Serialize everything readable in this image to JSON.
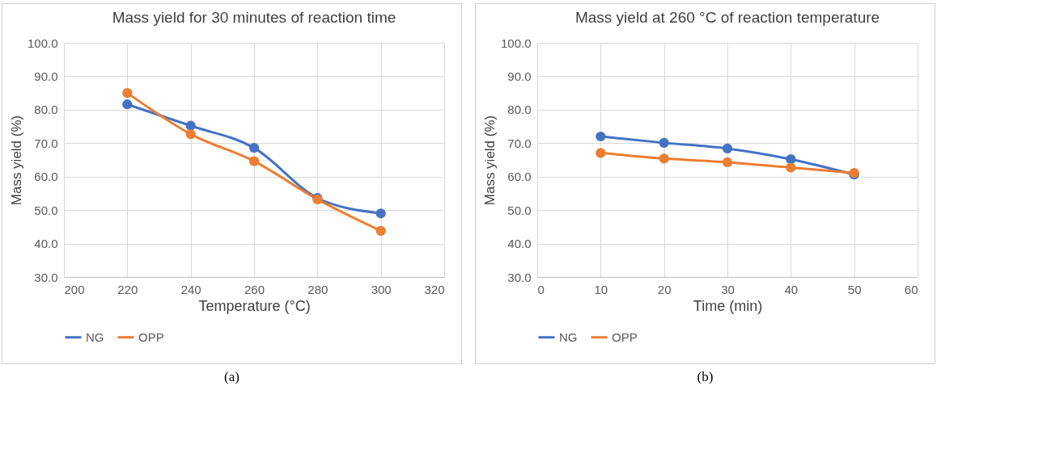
{
  "chart_data": [
    {
      "type": "line",
      "title": "Mass yield for 30 minutes of reaction time",
      "xlabel": "Temperature (°C)",
      "ylabel": "Mass yield (%)",
      "x": [
        220,
        240,
        260,
        280,
        300
      ],
      "series": [
        {
          "name": "NG",
          "color": "#4472c4",
          "values": [
            81.6,
            75.2,
            68.6,
            53.6,
            49.0
          ]
        },
        {
          "name": "OPP",
          "color": "#ed7d31",
          "values": [
            85.0,
            72.7,
            64.6,
            53.2,
            43.8
          ]
        }
      ],
      "xlim": [
        200,
        320
      ],
      "xticks": [
        200,
        220,
        240,
        260,
        280,
        300,
        320
      ],
      "ylim": [
        30,
        100
      ],
      "yticks": [
        {
          "value": 30,
          "label": "30.0"
        },
        {
          "value": 40,
          "label": "40.0"
        },
        {
          "value": 50,
          "label": "50.0"
        },
        {
          "value": 60,
          "label": "60.0"
        },
        {
          "value": 70,
          "label": "70.0"
        },
        {
          "value": 80,
          "label": "80.0"
        },
        {
          "value": 90,
          "label": "90.0"
        },
        {
          "value": 100,
          "label": "100.0"
        }
      ],
      "grid": true,
      "legend": "bottom",
      "marker": "circle",
      "annotations": [
        "(a)"
      ]
    },
    {
      "type": "line",
      "title": "Mass yield at 260 °C of reaction temperature",
      "xlabel": "Time (min)",
      "ylabel": "Mass yield (%)",
      "x": [
        10,
        20,
        30,
        40,
        50
      ],
      "series": [
        {
          "name": "NG",
          "color": "#4472c4",
          "values": [
            72.0,
            70.1,
            68.4,
            65.2,
            60.6
          ]
        },
        {
          "name": "OPP",
          "color": "#ed7d31",
          "values": [
            67.1,
            65.4,
            64.3,
            62.7,
            61.1
          ]
        }
      ],
      "xlim": [
        0,
        60
      ],
      "xticks": [
        0,
        10,
        20,
        30,
        40,
        50,
        60
      ],
      "ylim": [
        30,
        100
      ],
      "yticks": [
        {
          "value": 30,
          "label": "30.0"
        },
        {
          "value": 40,
          "label": "40.0"
        },
        {
          "value": 50,
          "label": "50.0"
        },
        {
          "value": 60,
          "label": "60.0"
        },
        {
          "value": 70,
          "label": "70.0"
        },
        {
          "value": 80,
          "label": "80.0"
        },
        {
          "value": 90,
          "label": "90.0"
        },
        {
          "value": 100,
          "label": "100.0"
        }
      ],
      "grid": true,
      "legend": "bottom",
      "marker": "circle",
      "annotations": [
        "(b)"
      ]
    }
  ]
}
